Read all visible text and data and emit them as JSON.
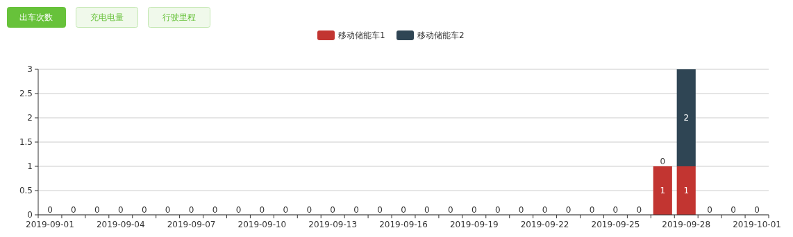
{
  "chart_data": {
    "type": "bar",
    "stacked": true,
    "grid": "y",
    "legend": "top",
    "annotations": [
      "出车次数",
      "充电电量",
      "行驶里程"
    ],
    "categories": [
      "2019-09-01",
      null,
      null,
      "2019-09-04",
      null,
      null,
      "2019-09-07",
      null,
      null,
      "2019-09-10",
      null,
      null,
      "2019-09-13",
      null,
      null,
      "2019-09-16",
      null,
      null,
      "2019-09-19",
      null,
      null,
      "2019-09-22",
      null,
      null,
      "2019-09-25",
      null,
      null,
      "2019-09-28",
      null,
      null,
      "2019-10-01"
    ],
    "series": [
      {
        "name": "移动储能车1",
        "color": "#c23531",
        "values": [
          0,
          0,
          0,
          0,
          0,
          0,
          0,
          0,
          0,
          0,
          0,
          0,
          0,
          0,
          0,
          0,
          0,
          0,
          0,
          0,
          0,
          0,
          0,
          0,
          0,
          0,
          1,
          1,
          0,
          0,
          0
        ],
        "value_labels": [
          "0",
          "0",
          "0",
          "0",
          "0",
          "0",
          "0",
          "0",
          "0",
          "0",
          "0",
          "0",
          "0",
          "0",
          "0",
          "0",
          "0",
          "0",
          "0",
          "0",
          "0",
          "0",
          "0",
          "0",
          "0",
          "0",
          "1",
          "1",
          "0",
          "0",
          "0"
        ]
      },
      {
        "name": "移动储能车2",
        "color": "#2f4554",
        "values": [
          0,
          0,
          0,
          0,
          0,
          0,
          0,
          0,
          0,
          0,
          0,
          0,
          0,
          0,
          0,
          0,
          0,
          0,
          0,
          0,
          0,
          0,
          0,
          0,
          0,
          0,
          0,
          2,
          0,
          0,
          0
        ],
        "value_labels": [
          null,
          null,
          null,
          null,
          null,
          null,
          null,
          null,
          null,
          null,
          null,
          null,
          null,
          null,
          null,
          null,
          null,
          null,
          null,
          null,
          null,
          null,
          null,
          null,
          null,
          null,
          "0",
          "2",
          null,
          null,
          null
        ]
      }
    ],
    "ylim": [
      0,
      3
    ],
    "yticks": [
      0,
      0.5,
      1,
      1.5,
      2,
      2.5,
      3
    ]
  }
}
